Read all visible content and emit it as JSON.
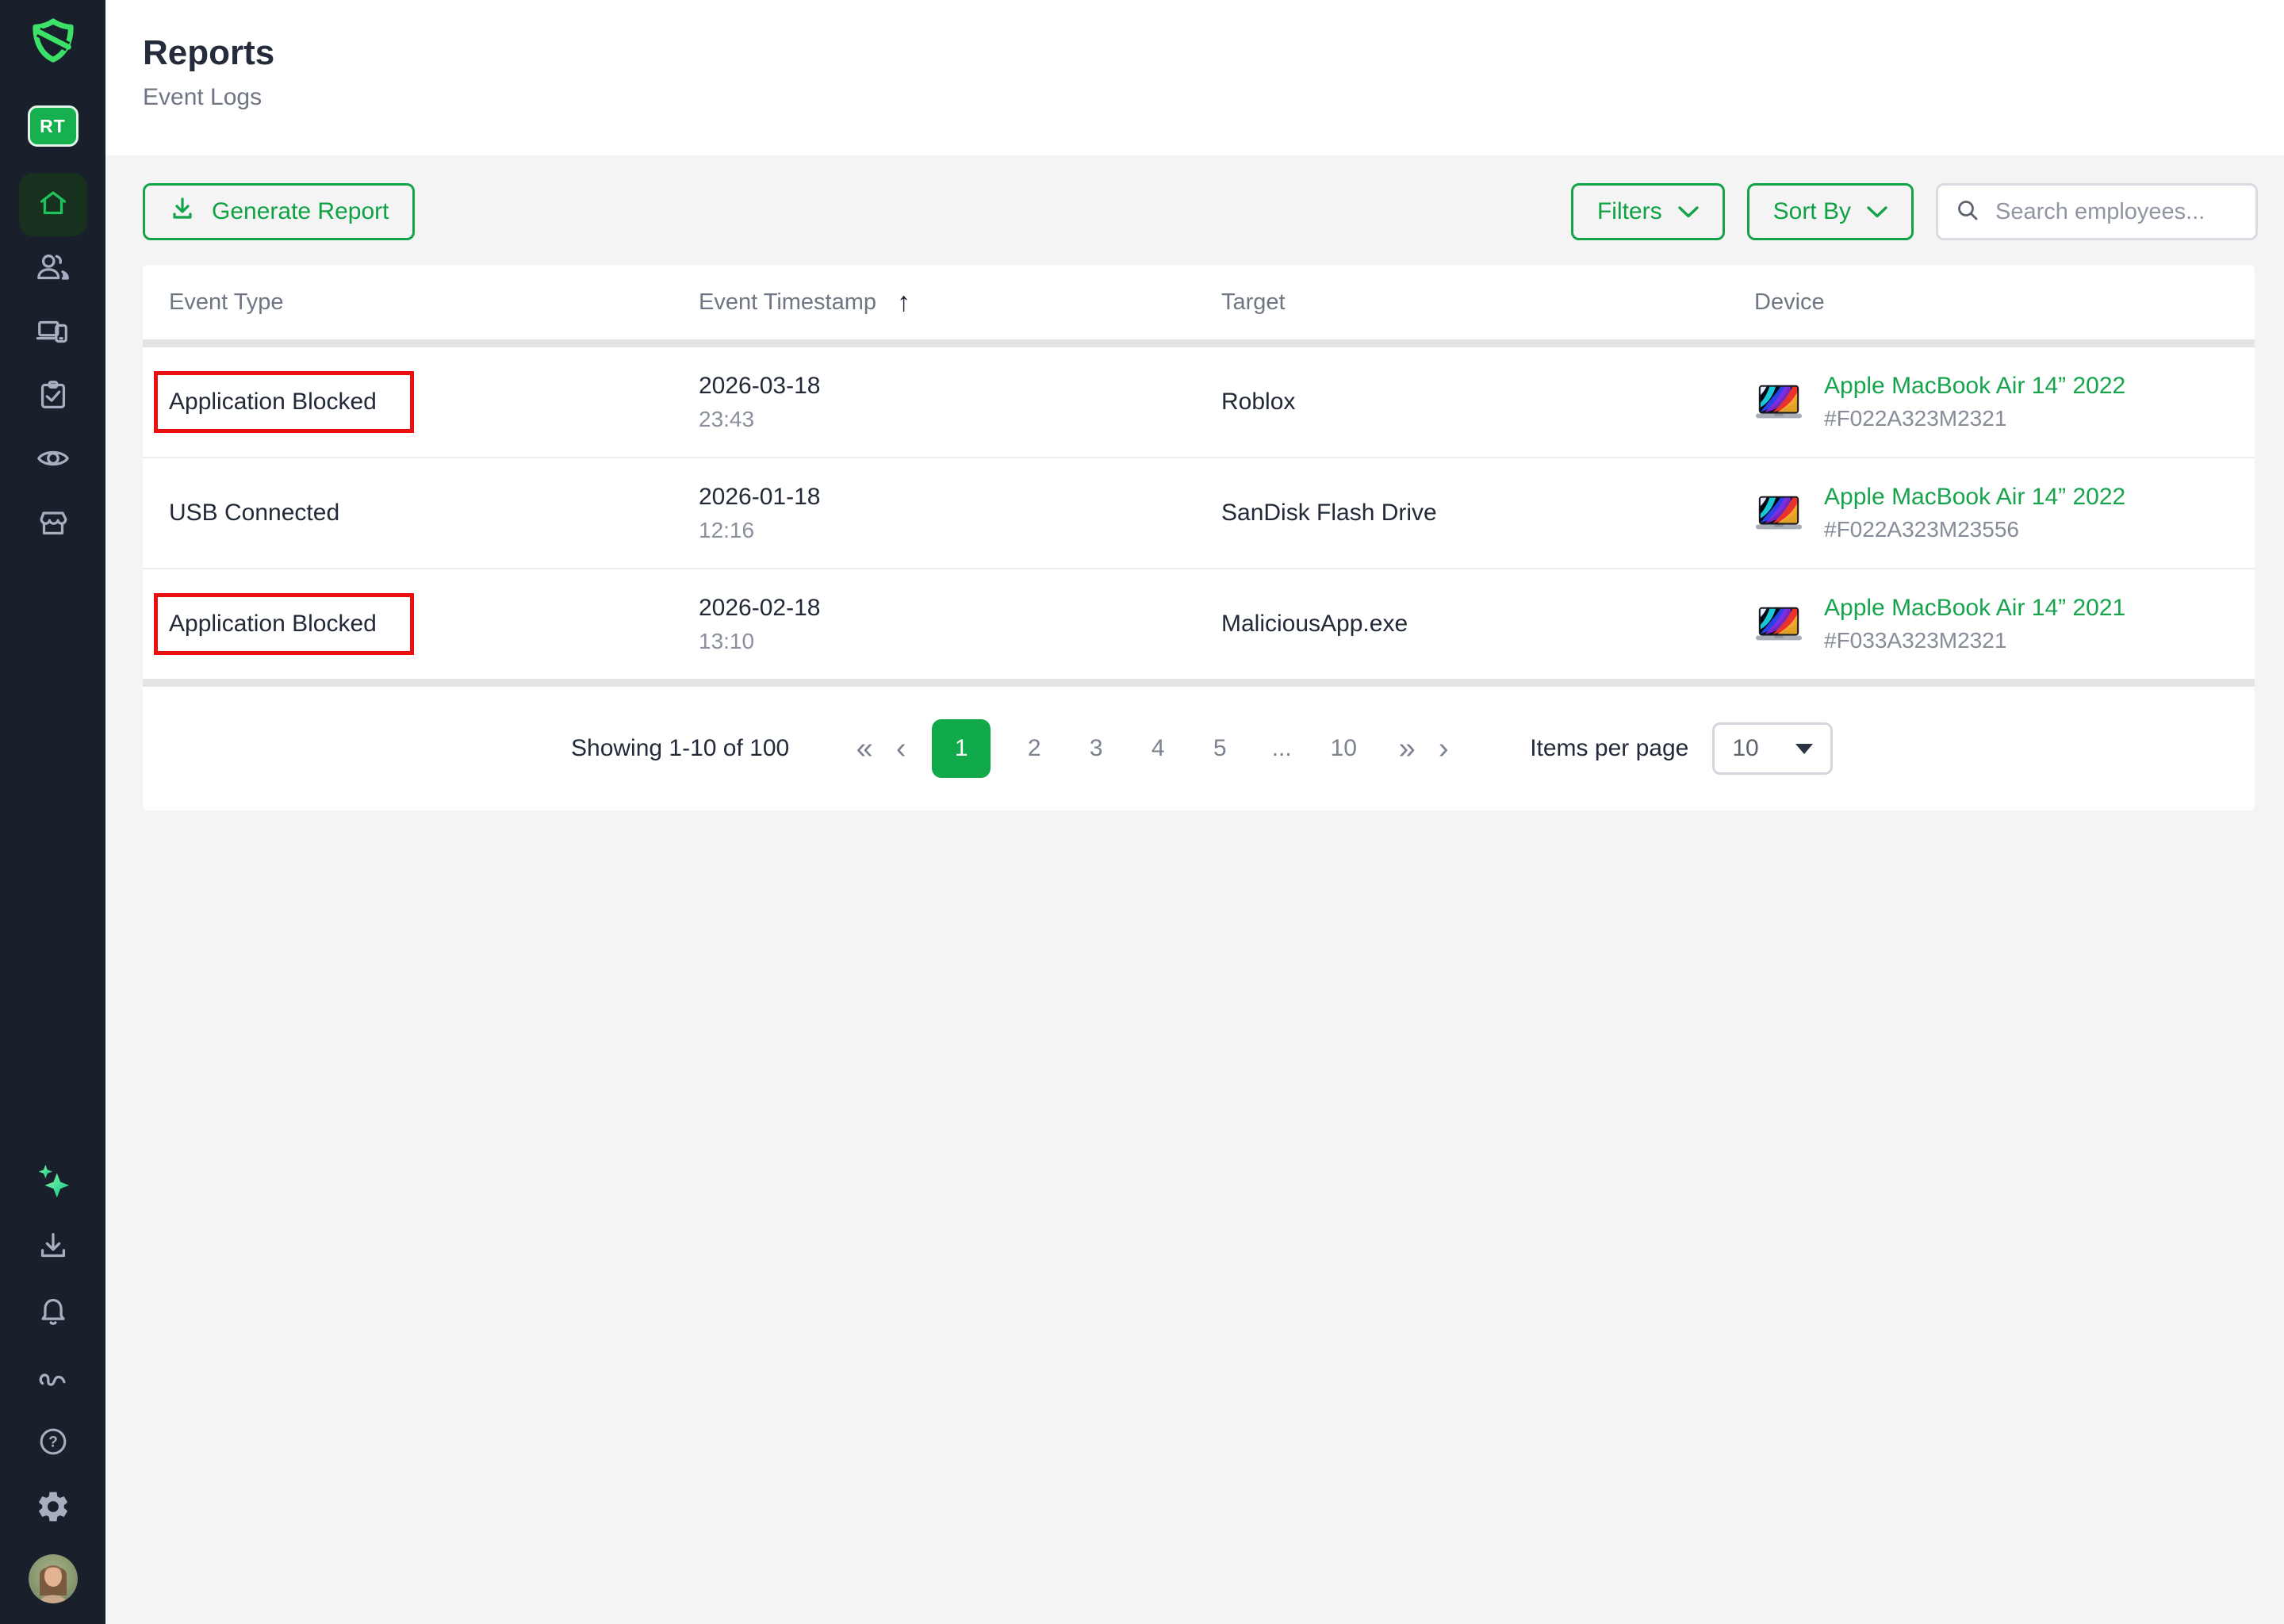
{
  "colors": {
    "brand_green": "#3ce268",
    "action_green": "#12a348",
    "active_page_green": "#10aa4a",
    "highlight_red": "#ea1010",
    "sidebar_bg": "#19202b"
  },
  "sidebar": {
    "logo_icon": "shield-logo-icon",
    "avatar_label": "RT",
    "nav_icons": [
      "home-icon",
      "team-icon",
      "devices-icon",
      "tasks-icon",
      "monitoring-icon",
      "store-icon"
    ],
    "active_nav": "home",
    "bottom_icons": [
      "sparkles-icon",
      "download-icon",
      "bell-icon",
      "signature-icon",
      "help-icon",
      "settings-icon"
    ],
    "user_avatar": "user-photo"
  },
  "header": {
    "title": "Reports",
    "subtitle": "Event Logs"
  },
  "toolbar": {
    "generate_report_label": "Generate Report",
    "filters_label": "Filters",
    "sort_by_label": "Sort By",
    "search_placeholder": "Search employees..."
  },
  "table": {
    "columns": [
      "Event Type",
      "Event Timestamp",
      "Target",
      "Device"
    ],
    "sorted_by": "Event Timestamp",
    "sort_direction": "ascending",
    "sort_indicator": "↑",
    "device_thumbnail_icon": "macbook-thumbnail",
    "rows": [
      {
        "event_type": "Application Blocked",
        "highlighted": true,
        "date": "2026-03-18",
        "time": "23:43",
        "target": "Roblox",
        "device_name": "Apple MacBook Air 14” 2022",
        "device_id": "#F022A323M2321"
      },
      {
        "event_type": "USB Connected",
        "highlighted": false,
        "date": "2026-01-18",
        "time": "12:16",
        "target": "SanDisk Flash Drive",
        "device_name": "Apple MacBook Air 14” 2022",
        "device_id": "#F022A323M23556"
      },
      {
        "event_type": "Application Blocked",
        "highlighted": true,
        "date": "2026-02-18",
        "time": "13:10",
        "target": "MaliciousApp.exe",
        "device_name": "Apple MacBook Air 14” 2021",
        "device_id": "#F033A323M2321"
      }
    ]
  },
  "pagination": {
    "summary": "Showing 1-10 of 100",
    "controls": {
      "first": "«",
      "prev": "‹",
      "last": "»",
      "next": "›"
    },
    "pages": [
      "1",
      "2",
      "3",
      "4",
      "5",
      "...",
      "10"
    ],
    "active_page": "1",
    "items_per_page_label": "Items per page",
    "items_per_page": "10"
  }
}
